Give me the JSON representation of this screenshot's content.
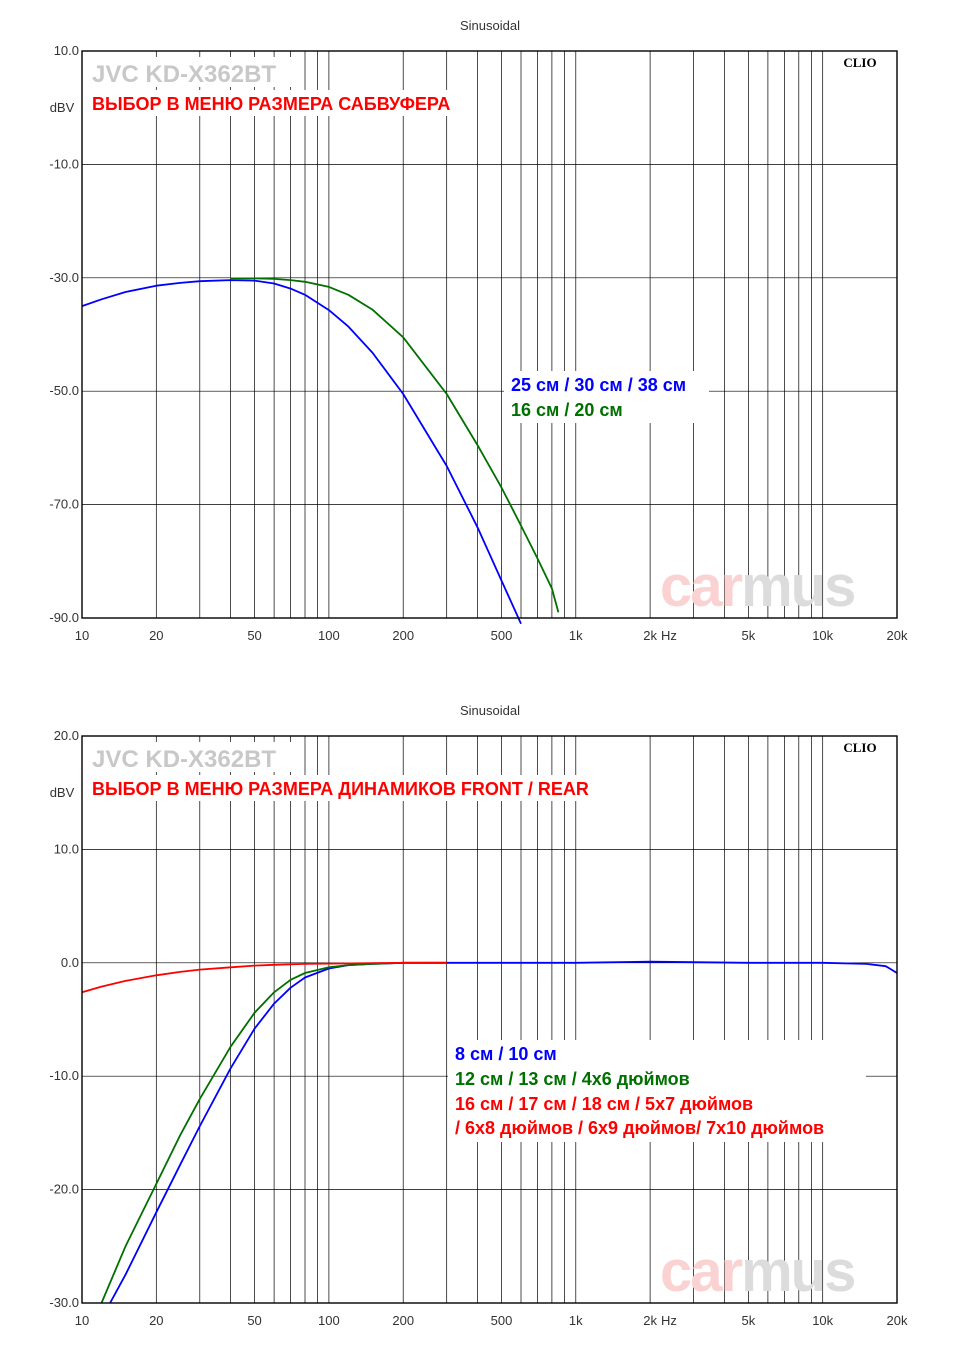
{
  "colors": {
    "blue": "#0000ff",
    "green": "#007000",
    "red": "#ff0000",
    "grid": "#000000"
  },
  "chart_data": [
    {
      "type": "line",
      "title": "Sinusoidal",
      "brand": "CLIO",
      "device": "JVC KD-X362BT",
      "caption": "ВЫБОР В МЕНЮ РАЗМЕРА САБВУФЕРА",
      "watermark": [
        "car",
        "mus"
      ],
      "unit_y": "dBV",
      "unit_x": "Hz",
      "xscale": "log",
      "xlim": [
        10,
        20000
      ],
      "ylim": [
        -90,
        10
      ],
      "x_ticks": [
        {
          "v": 10,
          "t": "10"
        },
        {
          "v": 20,
          "t": "20"
        },
        {
          "v": 50,
          "t": "50"
        },
        {
          "v": 100,
          "t": "100"
        },
        {
          "v": 200,
          "t": "200"
        },
        {
          "v": 500,
          "t": "500"
        },
        {
          "v": 1000,
          "t": "1k"
        },
        {
          "v": 2000,
          "t": "2k"
        },
        {
          "v": 5000,
          "t": "5k"
        },
        {
          "v": 10000,
          "t": "10k"
        },
        {
          "v": 20000,
          "t": "20k"
        }
      ],
      "y_ticks": [
        {
          "v": 10,
          "t": "10.0"
        },
        {
          "v": -10,
          "t": "-10.0"
        },
        {
          "v": -30,
          "t": "-30.0"
        },
        {
          "v": -50,
          "t": "-50.0"
        },
        {
          "v": -70,
          "t": "-70.0"
        },
        {
          "v": -90,
          "t": "-90.0"
        }
      ],
      "series": [
        {
          "name": "25 см / 30 см / 38 см",
          "color": "#0000ff",
          "x": [
            10,
            12,
            15,
            20,
            25,
            30,
            40,
            50,
            60,
            70,
            80,
            100,
            120,
            150,
            200,
            300,
            400,
            500,
            600
          ],
          "y": [
            -35,
            -33.8,
            -32.5,
            -31.4,
            -30.9,
            -30.6,
            -30.4,
            -30.5,
            -31,
            -31.9,
            -33,
            -35.7,
            -38.6,
            -43.2,
            -50.5,
            -63.2,
            -74,
            -83.4,
            -91
          ]
        },
        {
          "name": "16 см / 20 см",
          "color": "#007000",
          "x": [
            40,
            50,
            60,
            70,
            80,
            100,
            120,
            150,
            200,
            300,
            400,
            500,
            600,
            700,
            800,
            850
          ],
          "y": [
            -30.1,
            -30.1,
            -30.2,
            -30.4,
            -30.7,
            -31.6,
            -33,
            -35.6,
            -40.5,
            -50.5,
            -59.5,
            -67,
            -73.7,
            -79.5,
            -84.8,
            -89
          ]
        }
      ]
    },
    {
      "type": "line",
      "title": "Sinusoidal",
      "brand": "CLIO",
      "device": "JVC KD-X362BT",
      "caption": "ВЫБОР В МЕНЮ РАЗМЕРА ДИНАМИКОВ FRONT / REAR",
      "watermark": [
        "car",
        "mus"
      ],
      "unit_y": "dBV",
      "unit_x": "Hz",
      "xscale": "log",
      "xlim": [
        10,
        20000
      ],
      "ylim": [
        -30,
        20
      ],
      "x_ticks": [
        {
          "v": 10,
          "t": "10"
        },
        {
          "v": 20,
          "t": "20"
        },
        {
          "v": 50,
          "t": "50"
        },
        {
          "v": 100,
          "t": "100"
        },
        {
          "v": 200,
          "t": "200"
        },
        {
          "v": 500,
          "t": "500"
        },
        {
          "v": 1000,
          "t": "1k"
        },
        {
          "v": 2000,
          "t": "2k"
        },
        {
          "v": 5000,
          "t": "5k"
        },
        {
          "v": 10000,
          "t": "10k"
        },
        {
          "v": 20000,
          "t": "20k"
        }
      ],
      "y_ticks": [
        {
          "v": 20,
          "t": "20.0"
        },
        {
          "v": 10,
          "t": "10.0"
        },
        {
          "v": 0,
          "t": "0.0"
        },
        {
          "v": -10,
          "t": "-10.0"
        },
        {
          "v": -20,
          "t": "-20.0"
        },
        {
          "v": -30,
          "t": "-30.0"
        }
      ],
      "series": [
        {
          "name": "8 см / 10 см",
          "color": "#0000ff",
          "x": [
            13,
            15,
            20,
            25,
            30,
            40,
            50,
            60,
            70,
            80,
            100,
            120,
            150,
            200,
            300,
            500,
            1000,
            2000,
            5000,
            10000,
            15000,
            18000,
            19000,
            20000
          ],
          "y": [
            -30,
            -27.5,
            -22,
            -17.8,
            -14.4,
            -9.3,
            -5.8,
            -3.6,
            -2.2,
            -1.3,
            -0.5,
            -0.2,
            -0.1,
            0,
            0,
            0,
            0,
            0.1,
            0,
            0,
            -0.1,
            -0.3,
            -0.6,
            -0.9
          ]
        },
        {
          "name": "12 см / 13 см / 4x6 дюймов",
          "color": "#007000",
          "x": [
            12,
            15,
            20,
            25,
            30,
            40,
            50,
            60,
            70,
            80,
            100,
            120,
            150,
            200,
            300
          ],
          "y": [
            -30,
            -25,
            -19.5,
            -15.2,
            -12,
            -7.4,
            -4.4,
            -2.6,
            -1.5,
            -0.9,
            -0.4,
            -0.2,
            -0.1,
            0,
            0
          ]
        },
        {
          "name": "16 см / 17 см / 18 см / 5x7 дюймов / 6x8 дюймов / 6x9 дюймов/  7x10 дюймов",
          "color": "#ff0000",
          "x": [
            10,
            12,
            15,
            20,
            25,
            30,
            40,
            50,
            60,
            80,
            100,
            150,
            200,
            300
          ],
          "y": [
            -2.6,
            -2.1,
            -1.6,
            -1.1,
            -0.8,
            -0.6,
            -0.4,
            -0.25,
            -0.18,
            -0.1,
            -0.07,
            -0.03,
            -0.01,
            0
          ]
        }
      ]
    }
  ],
  "legend_top": [
    {
      "text": "25 см / 30 см / 38 см",
      "color": "#0000ff"
    },
    {
      "text": "16 см / 20 см",
      "color": "#007000"
    }
  ],
  "legend_bottom": [
    {
      "text": "8 см / 10 см",
      "color": "#0000ff"
    },
    {
      "text": "12 см / 13 см / 4x6 дюймов",
      "color": "#007000"
    },
    {
      "text": "16 см / 17 см / 18 см / 5x7 дюймов",
      "color": "#ff0000"
    },
    {
      "text": "/ 6x8 дюймов / 6x9 дюймов/  7x10 дюймов",
      "color": "#ff0000"
    }
  ]
}
